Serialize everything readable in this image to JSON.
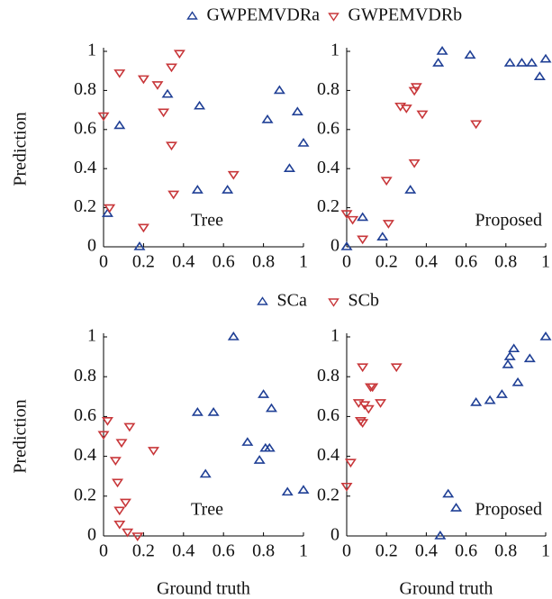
{
  "chart_data": [
    {
      "type": "scatter",
      "annotation": "Tree",
      "ylabel": "Prediction",
      "legend": "top",
      "xlim": [
        0,
        1
      ],
      "ylim": [
        0,
        1
      ],
      "xticks": [
        0,
        0.2,
        0.4,
        0.6,
        0.8,
        1
      ],
      "yticks": [
        0,
        0.2,
        0.4,
        0.6,
        0.8,
        1
      ],
      "series": [
        {
          "name": "GWPEMVDRa",
          "color": "#1f3f95",
          "marker": "triangle-up",
          "x": [
            0.02,
            0.08,
            0.18,
            0.32,
            0.47,
            0.48,
            0.62,
            0.82,
            0.88,
            0.93,
            0.97,
            1.0
          ],
          "y": [
            0.17,
            0.62,
            0.0,
            0.78,
            0.29,
            0.72,
            0.29,
            0.65,
            0.8,
            0.4,
            0.69,
            0.53
          ]
        },
        {
          "name": "GWPEMVDRb",
          "color": "#c8373a",
          "marker": "triangle-down",
          "x": [
            0.0,
            0.03,
            0.08,
            0.2,
            0.2,
            0.27,
            0.3,
            0.34,
            0.34,
            0.35,
            0.38,
            0.65
          ],
          "y": [
            0.67,
            0.2,
            0.89,
            0.1,
            0.86,
            0.83,
            0.69,
            0.92,
            0.52,
            0.27,
            0.99,
            0.37
          ]
        }
      ]
    },
    {
      "type": "scatter",
      "annotation": "Proposed",
      "xlim": [
        0,
        1
      ],
      "ylim": [
        0,
        1
      ],
      "xticks": [
        0,
        0.2,
        0.4,
        0.6,
        0.8,
        1
      ],
      "yticks": [
        0,
        0.2,
        0.4,
        0.6,
        0.8,
        1
      ],
      "series": [
        {
          "name": "GWPEMVDRa",
          "color": "#1f3f95",
          "marker": "triangle-up",
          "x": [
            0.0,
            0.08,
            0.18,
            0.32,
            0.46,
            0.48,
            0.62,
            0.82,
            0.88,
            0.93,
            0.97,
            1.0
          ],
          "y": [
            0.0,
            0.15,
            0.05,
            0.29,
            0.94,
            1.0,
            0.98,
            0.94,
            0.94,
            0.94,
            0.87,
            0.96
          ]
        },
        {
          "name": "GWPEMVDRb",
          "color": "#c8373a",
          "marker": "triangle-down",
          "x": [
            0.0,
            0.03,
            0.08,
            0.2,
            0.21,
            0.27,
            0.3,
            0.34,
            0.35,
            0.34,
            0.38,
            0.65
          ],
          "y": [
            0.17,
            0.14,
            0.04,
            0.34,
            0.12,
            0.72,
            0.71,
            0.8,
            0.82,
            0.43,
            0.68,
            0.63
          ]
        }
      ]
    },
    {
      "type": "scatter",
      "annotation": "Tree",
      "ylabel": "Prediction",
      "xlabel": "Ground truth",
      "legend": "top",
      "xlim": [
        0,
        1
      ],
      "ylim": [
        0,
        1
      ],
      "xticks": [
        0,
        0.2,
        0.4,
        0.6,
        0.8,
        1
      ],
      "yticks": [
        0,
        0.2,
        0.4,
        0.6,
        0.8,
        1
      ],
      "series": [
        {
          "name": "SCa",
          "color": "#1f3f95",
          "marker": "triangle-up",
          "x": [
            0.47,
            0.51,
            0.55,
            0.65,
            0.72,
            0.78,
            0.8,
            0.81,
            0.83,
            0.84,
            0.92,
            1.0
          ],
          "y": [
            0.62,
            0.31,
            0.62,
            1.0,
            0.47,
            0.38,
            0.71,
            0.44,
            0.44,
            0.64,
            0.22,
            0.23
          ]
        },
        {
          "name": "SCb",
          "color": "#c8373a",
          "marker": "triangle-down",
          "x": [
            0.0,
            0.02,
            0.06,
            0.07,
            0.08,
            0.08,
            0.09,
            0.11,
            0.12,
            0.13,
            0.17,
            0.25
          ],
          "y": [
            0.51,
            0.58,
            0.38,
            0.27,
            0.13,
            0.06,
            0.47,
            0.17,
            0.02,
            0.55,
            0.0,
            0.43
          ]
        }
      ]
    },
    {
      "type": "scatter",
      "annotation": "Proposed",
      "xlabel": "Ground truth",
      "xlim": [
        0,
        1
      ],
      "ylim": [
        0,
        1
      ],
      "xticks": [
        0,
        0.2,
        0.4,
        0.6,
        0.8,
        1
      ],
      "yticks": [
        0,
        0.2,
        0.4,
        0.6,
        0.8,
        1
      ],
      "series": [
        {
          "name": "SCa",
          "color": "#1f3f95",
          "marker": "triangle-up",
          "x": [
            0.47,
            0.51,
            0.55,
            0.65,
            0.72,
            0.78,
            0.81,
            0.82,
            0.84,
            0.86,
            0.92,
            1.0
          ],
          "y": [
            0.0,
            0.21,
            0.14,
            0.67,
            0.68,
            0.71,
            0.86,
            0.9,
            0.94,
            0.77,
            0.89,
            1.0
          ]
        },
        {
          "name": "SCb",
          "color": "#c8373a",
          "marker": "triangle-down",
          "x": [
            0.0,
            0.02,
            0.06,
            0.07,
            0.08,
            0.08,
            0.09,
            0.11,
            0.12,
            0.13,
            0.17,
            0.25
          ],
          "y": [
            0.25,
            0.37,
            0.67,
            0.58,
            0.57,
            0.85,
            0.66,
            0.64,
            0.75,
            0.75,
            0.67,
            0.85
          ]
        }
      ]
    }
  ]
}
